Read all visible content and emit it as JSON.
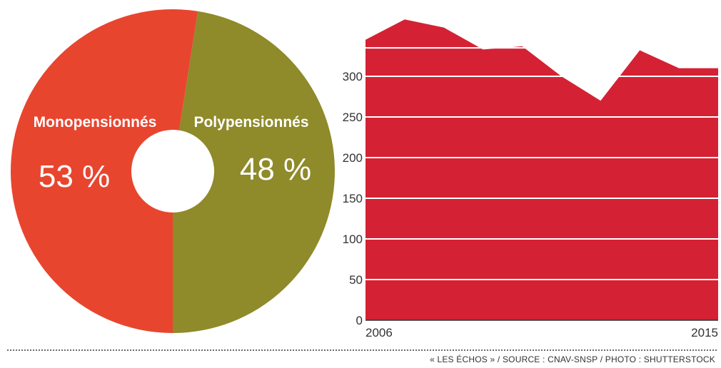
{
  "colors": {
    "mono": "#e8452f",
    "poly": "#8f8a2a",
    "area": "#d42234",
    "grid": "#ffffff",
    "text": "#333333"
  },
  "chart_data": [
    {
      "type": "pie",
      "labels": [
        "Monopensionnés",
        "Polypensionnés"
      ],
      "values": [
        53,
        48
      ],
      "value_labels": [
        "53 %",
        "48 %"
      ],
      "legend": "none"
    },
    {
      "type": "area",
      "x": [
        2006,
        2007,
        2008,
        2009,
        2010,
        2011,
        2012,
        2013,
        2014,
        2015
      ],
      "y": [
        345,
        370,
        360,
        333,
        337,
        300,
        270,
        332,
        310,
        310
      ],
      "x_tick_labels": [
        "2006",
        "2015"
      ],
      "y_ticks": [
        0,
        50,
        100,
        150,
        200,
        250,
        300
      ],
      "ylim": [
        0,
        370
      ],
      "grid": true
    }
  ],
  "footer": {
    "credit": "« LES ÉCHOS » / SOURCE : CNAV-SNSP / PHOTO : SHUTTERSTOCK"
  }
}
